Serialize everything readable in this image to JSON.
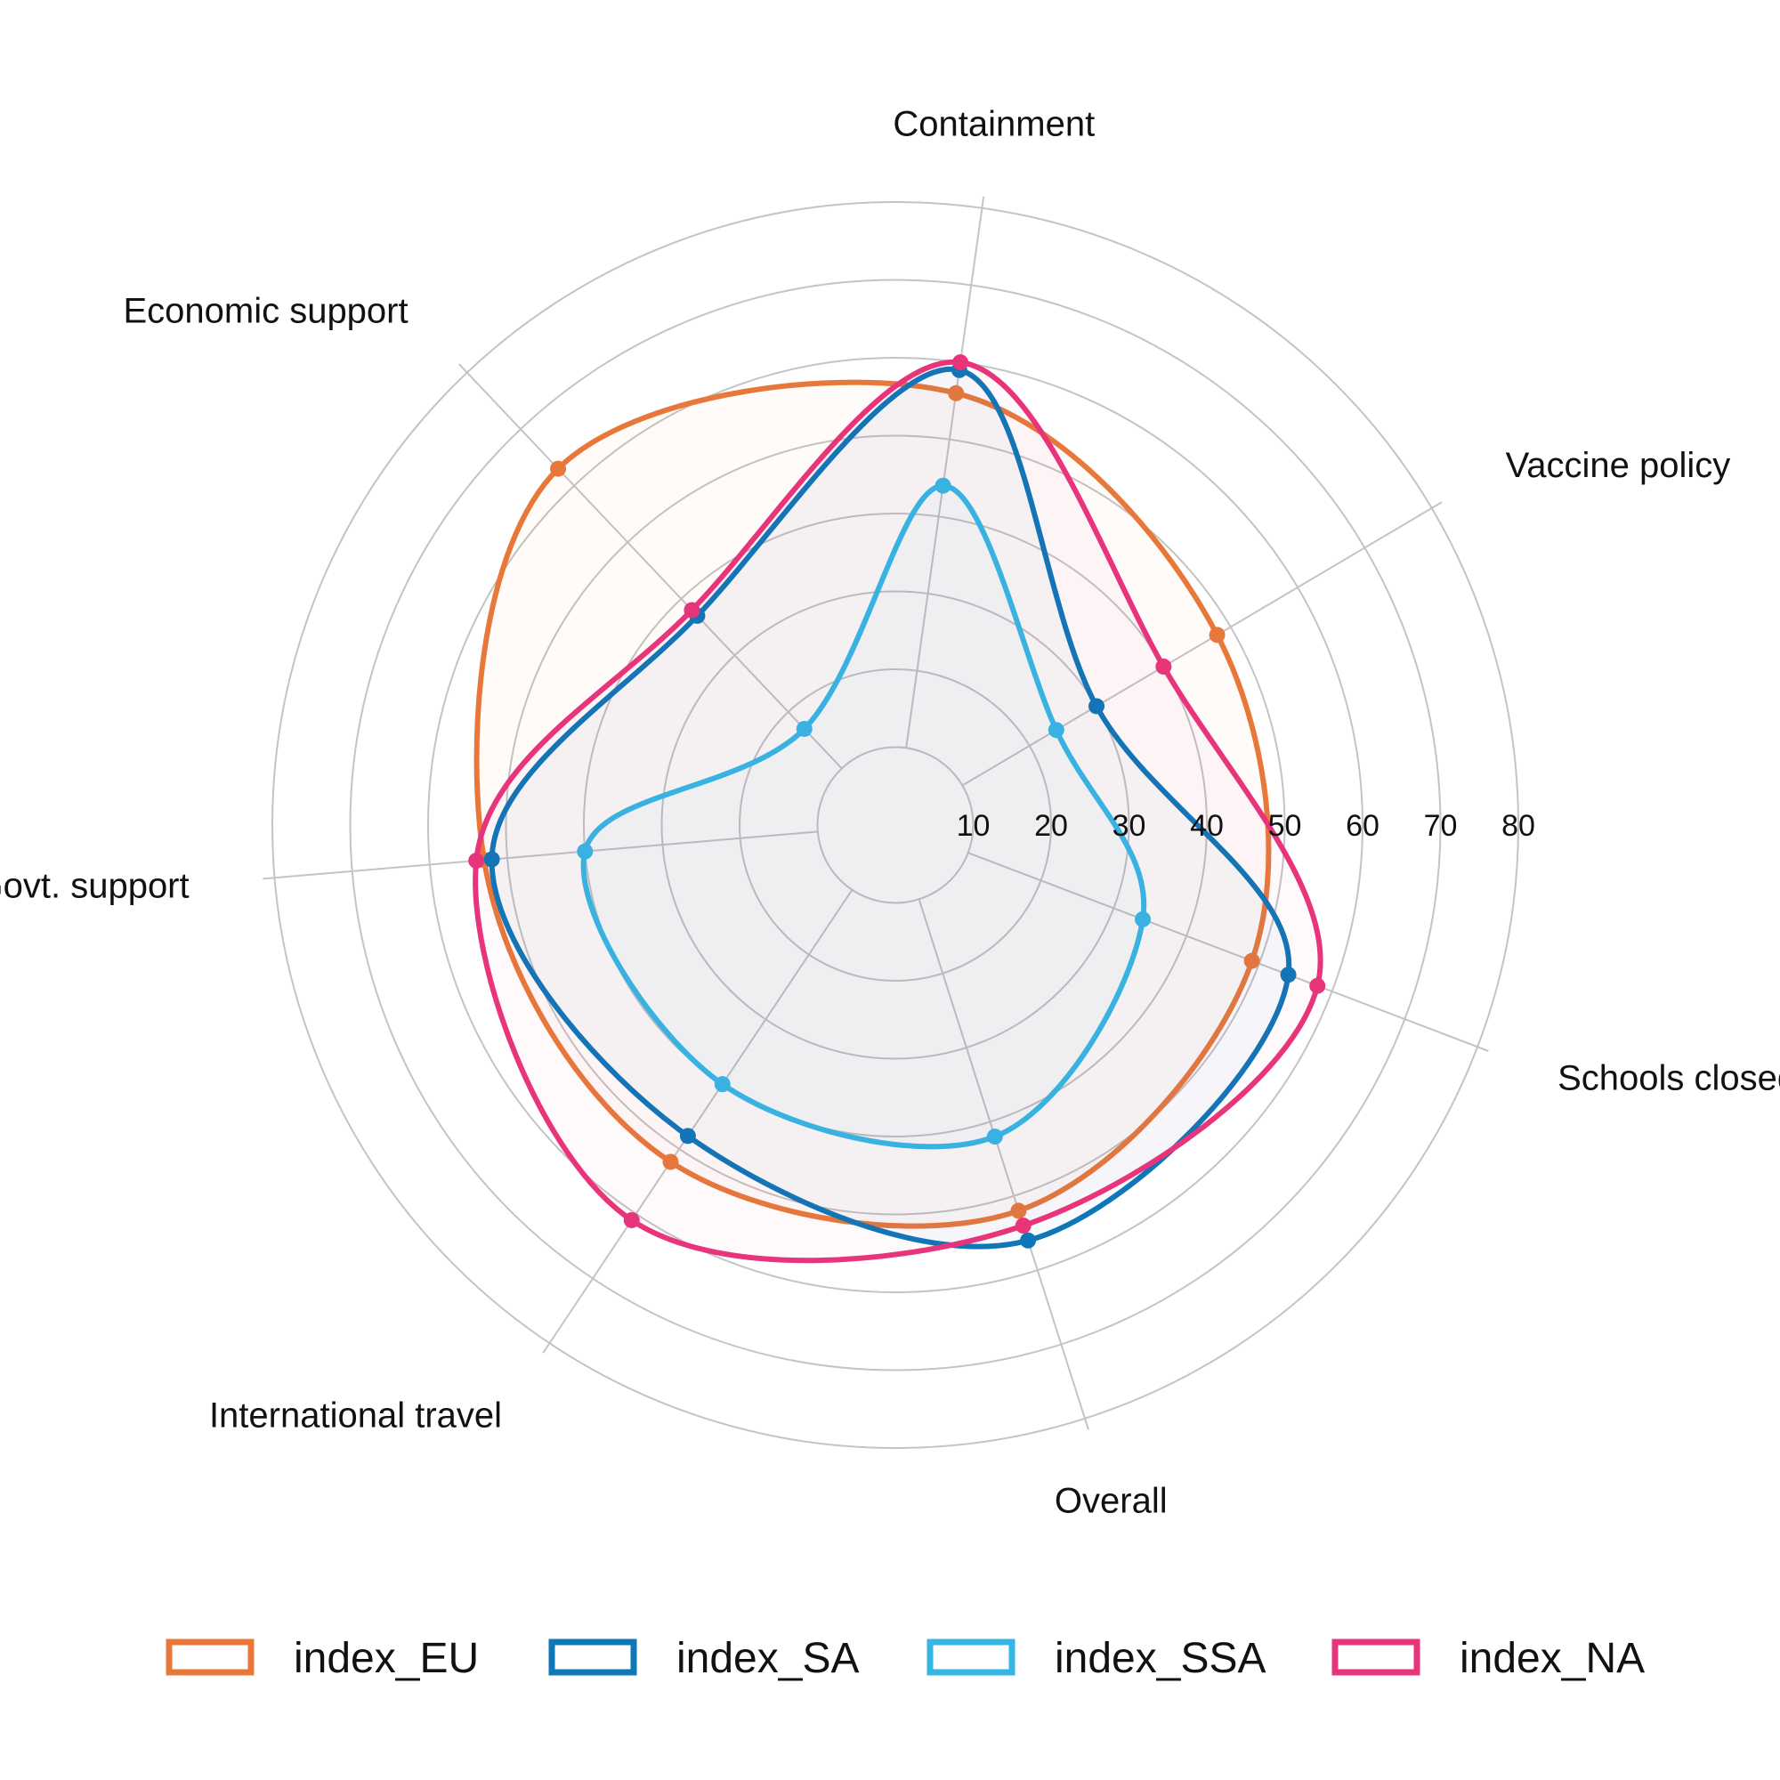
{
  "chart_data": {
    "type": "radar",
    "axes": [
      "Containment",
      "Vaccine policy",
      "Schools closed",
      "Overall",
      "International travel",
      "Govt. support",
      "Economic support"
    ],
    "radial_ticks": [
      "10",
      "20",
      "30",
      "40",
      "50",
      "60",
      "70",
      "80"
    ],
    "rlim": [
      0,
      80
    ],
    "legend_position": "bottom",
    "series": [
      {
        "name": "index_EU",
        "color": "#E8783A",
        "values": [
          56,
          48,
          49,
          52,
          52,
          53,
          63
        ]
      },
      {
        "name": "index_SA",
        "color": "#0F76B8",
        "values": [
          59,
          30,
          54,
          56,
          48,
          52,
          37
        ]
      },
      {
        "name": "index_SSA",
        "color": "#35B6E5",
        "values": [
          44,
          24,
          34,
          42,
          40,
          40,
          17
        ]
      },
      {
        "name": "index_NA",
        "color": "#E8347A",
        "values": [
          60,
          40,
          58,
          54,
          61,
          54,
          38
        ]
      }
    ]
  }
}
